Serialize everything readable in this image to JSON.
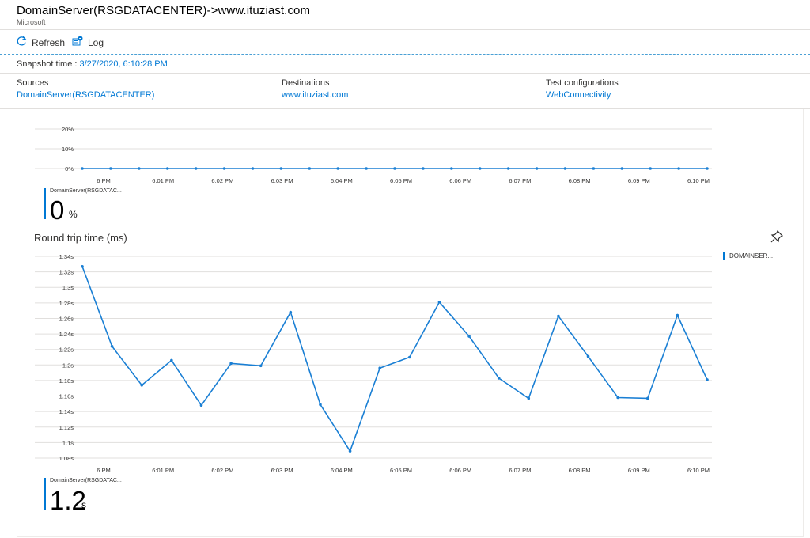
{
  "header": {
    "title": "DomainServer(RSGDATACENTER)->www.ituziast.com",
    "subtitle": "Microsoft"
  },
  "toolbar": {
    "refresh_label": "Refresh",
    "log_label": "Log"
  },
  "snapshot": {
    "label": "Snapshot time :",
    "value": "3/27/2020, 6:10:28 PM"
  },
  "info": {
    "sources_label": "Sources",
    "sources_value": "DomainServer(RSGDATACENTER)",
    "destinations_label": "Destinations",
    "destinations_value": "www.ituziast.com",
    "testconf_label": "Test configurations",
    "testconf_value": "WebConnectivity"
  },
  "check_failed_stat": {
    "series_label": "DomainServer(RSGDATAC...",
    "value": "0",
    "unit": "%"
  },
  "rtt_chart": {
    "title": "Round trip time (ms)",
    "legend_label": "DOMAINSER..."
  },
  "rtt_stat": {
    "series_label": "DomainServer(RSGDATAC...",
    "value": "1.2",
    "unit": "s"
  },
  "colors": {
    "accent": "#0078d4",
    "line": "#1a7fd4"
  },
  "chart_data": [
    {
      "type": "line",
      "title": "",
      "xlabel": "",
      "ylabel": "",
      "x_ticks": [
        "6 PM",
        "6:01 PM",
        "6:02 PM",
        "6:03 PM",
        "6:04 PM",
        "6:05 PM",
        "6:06 PM",
        "6:07 PM",
        "6:08 PM",
        "6:09 PM",
        "6:10 PM"
      ],
      "y_ticks": [
        "0%",
        "10%",
        "20%"
      ],
      "ylim": [
        0,
        20
      ],
      "grid": true,
      "series": [
        {
          "name": "DomainServer(RSGDATAC...",
          "values": [
            0,
            0,
            0,
            0,
            0,
            0,
            0,
            0,
            0,
            0,
            0,
            0,
            0,
            0,
            0,
            0,
            0,
            0,
            0,
            0,
            0,
            0,
            0
          ]
        }
      ]
    },
    {
      "type": "line",
      "title": "Round trip time (ms)",
      "xlabel": "",
      "ylabel": "",
      "x_ticks": [
        "6 PM",
        "6:01 PM",
        "6:02 PM",
        "6:03 PM",
        "6:04 PM",
        "6:05 PM",
        "6:06 PM",
        "6:07 PM",
        "6:08 PM",
        "6:09 PM",
        "6:10 PM"
      ],
      "y_ticks": [
        "1.08s",
        "1.1s",
        "1.12s",
        "1.14s",
        "1.16s",
        "1.18s",
        "1.2s",
        "1.22s",
        "1.24s",
        "1.26s",
        "1.28s",
        "1.3s",
        "1.32s",
        "1.34s"
      ],
      "ylim": [
        1.08,
        1.34
      ],
      "grid": true,
      "legend_position": "right",
      "series": [
        {
          "name": "DOMAINSER...",
          "values": [
            1.327,
            1.224,
            1.174,
            1.206,
            1.148,
            1.202,
            1.199,
            1.268,
            1.149,
            1.089,
            1.196,
            1.21,
            1.281,
            1.237,
            1.183,
            1.157,
            1.263,
            1.211,
            1.158,
            1.157,
            1.264,
            1.181
          ]
        }
      ]
    }
  ]
}
